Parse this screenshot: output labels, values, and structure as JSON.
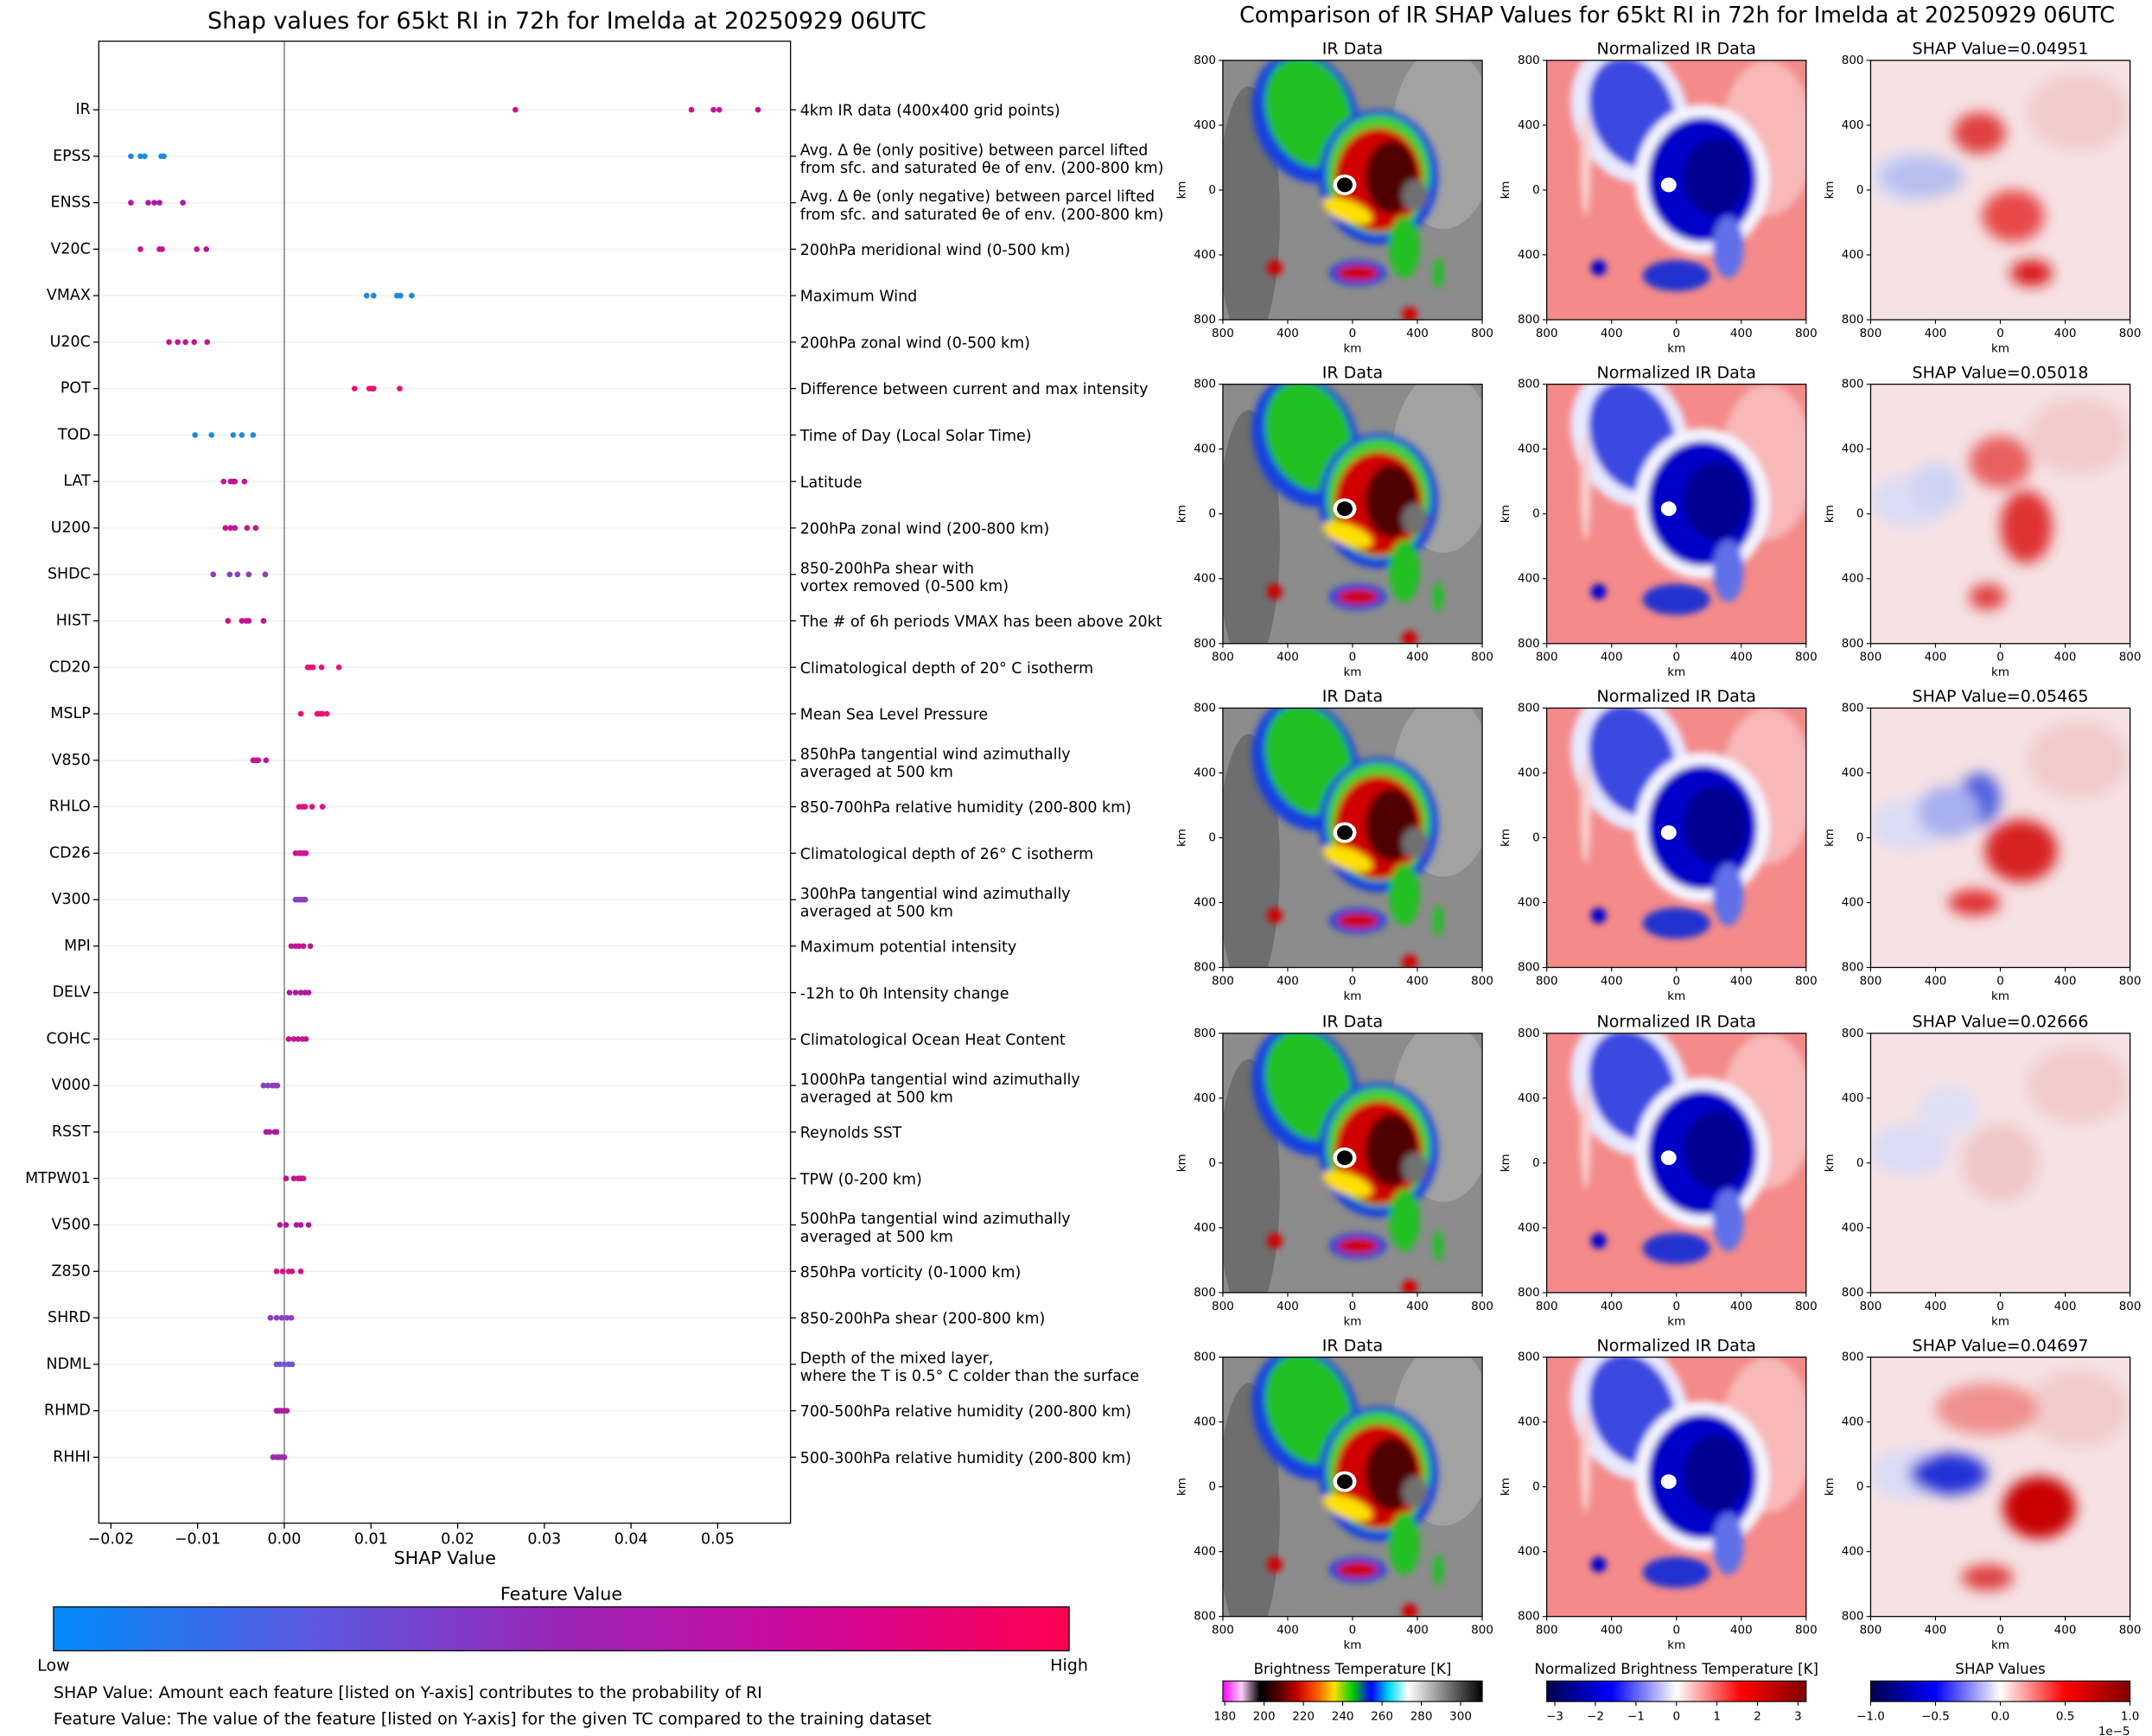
{
  "chart_data": [
    {
      "type": "strip",
      "title": "Shap values for 65kt RI in 72h for Imelda at 20250929 06UTC",
      "x_label": "SHAP Value",
      "xlim": [
        -0.0214,
        0.0584
      ],
      "xticks": [
        {
          "value": -0.02,
          "label": "−0.02"
        },
        {
          "value": -0.01,
          "label": "−0.01"
        },
        {
          "value": 0,
          "label": "0.00"
        },
        0.01,
        0.02,
        0.03,
        0.04,
        0.05
      ],
      "series": [
        {
          "name": "IR",
          "color": "#c41590",
          "values": [
            0.02666,
            0.04697,
            0.04951,
            0.05018,
            0.05465
          ],
          "description": [
            "4km IR data (400x400 grid points)"
          ]
        },
        {
          "name": "EPSS",
          "color": "#1e88e5",
          "values": [
            -0.0177,
            -0.0166,
            -0.0161,
            -0.0142,
            -0.0139
          ],
          "description": [
            "Avg. Δ θe (only positive) between parcel lifted",
            "from sfc. and saturated θe of env. (200-800 km)"
          ]
        },
        {
          "name": "ENSS",
          "color": "#b0189e",
          "values": [
            -0.0177,
            -0.0157,
            -0.015,
            -0.0144,
            -0.0117
          ],
          "description": [
            "Avg. Δ θe (only negative) between parcel lifted",
            "from sfc. and saturated θe of env. (200-800 km)"
          ]
        },
        {
          "name": "V20C",
          "color": "#c41590",
          "values": [
            -0.0166,
            -0.0144,
            -0.0141,
            -0.0101,
            -0.009
          ],
          "description": [
            "200hPa meridional wind (0-500 km)"
          ]
        },
        {
          "name": "VMAX",
          "color": "#1e88e5",
          "values": [
            0.0095,
            0.0103,
            0.013,
            0.0134,
            0.0147
          ],
          "description": [
            "Maximum Wind"
          ]
        },
        {
          "name": "U20C",
          "color": "#c41590",
          "values": [
            -0.0133,
            -0.0123,
            -0.0114,
            -0.0104,
            -0.0089
          ],
          "description": [
            "200hPa zonal wind (0-500 km)"
          ]
        },
        {
          "name": "POT",
          "color": "#ee1172",
          "values": [
            0.0081,
            0.0098,
            0.0101,
            0.0103,
            0.0133
          ],
          "description": [
            "Difference between current and max intensity"
          ]
        },
        {
          "name": "TOD",
          "color": "#1e88e5",
          "values": [
            -0.0103,
            -0.0084,
            -0.0059,
            -0.0049,
            -0.0036
          ],
          "description": [
            "Time of Day (Local Solar Time)"
          ]
        },
        {
          "name": "LAT",
          "color": "#c41590",
          "values": [
            -0.007,
            -0.0062,
            -0.0059,
            -0.0057,
            -0.0046
          ],
          "description": [
            "Latitude"
          ]
        },
        {
          "name": "U200",
          "color": "#c41590",
          "values": [
            -0.0068,
            -0.0062,
            -0.0057,
            -0.0043,
            -0.0033
          ],
          "description": [
            "200hPa zonal wind (200-800 km)"
          ]
        },
        {
          "name": "SHDC",
          "color": "#8a3fbd",
          "values": [
            -0.0082,
            -0.0063,
            -0.0054,
            -0.0041,
            -0.0022
          ],
          "description": [
            "850-200hPa shear with",
            "vortex removed (0-500 km)"
          ]
        },
        {
          "name": "HIST",
          "color": "#c41590",
          "values": [
            -0.0065,
            -0.0049,
            -0.0044,
            -0.0041,
            -0.0024
          ],
          "description": [
            "The # of 6h periods VMAX has been above 20kt"
          ]
        },
        {
          "name": "CD20",
          "color": "#e8127a",
          "values": [
            0.0027,
            0.003,
            0.0033,
            0.0043,
            0.0063
          ],
          "description": [
            "Climatological depth of 20° C isotherm"
          ]
        },
        {
          "name": "MSLP",
          "color": "#e8127a",
          "values": [
            0.0019,
            0.0038,
            0.0041,
            0.0044,
            0.0049
          ],
          "description": [
            "Mean Sea Level Pressure"
          ]
        },
        {
          "name": "V850",
          "color": "#c41590",
          "values": [
            -0.0036,
            -0.0035,
            -0.0032,
            -0.003,
            -0.0021
          ],
          "description": [
            "850hPa tangential wind azimuthally",
            "averaged at 500 km"
          ]
        },
        {
          "name": "RHLO",
          "color": "#e0137e",
          "values": [
            0.0017,
            0.0021,
            0.0024,
            0.0032,
            0.0044
          ],
          "description": [
            "850-700hPa relative humidity (200-800 km)"
          ]
        },
        {
          "name": "CD26",
          "color": "#d0148a",
          "values": [
            0.0013,
            0.0017,
            0.0019,
            0.0022,
            0.0025
          ],
          "description": [
            "Climatological depth of 26° C isotherm"
          ]
        },
        {
          "name": "V300",
          "color": "#8a3fbd",
          "values": [
            0.0013,
            0.0016,
            0.0019,
            0.0022,
            0.0024
          ],
          "description": [
            "300hPa tangential wind azimuthally",
            "averaged at 500 km"
          ]
        },
        {
          "name": "MPI",
          "color": "#c41590",
          "values": [
            0.0008,
            0.0013,
            0.0017,
            0.0022,
            0.003
          ],
          "description": [
            "Maximum potential intensity"
          ]
        },
        {
          "name": "DELV",
          "color": "#b0189e",
          "values": [
            0.0006,
            0.0013,
            0.0019,
            0.0024,
            0.0028
          ],
          "description": [
            "-12h to 0h Intensity change"
          ]
        },
        {
          "name": "COHC",
          "color": "#c41590",
          "values": [
            0.0005,
            0.0011,
            0.0016,
            0.0021,
            0.0025
          ],
          "description": [
            "Climatological Ocean Heat Content"
          ]
        },
        {
          "name": "V000",
          "color": "#8a3fbd",
          "values": [
            -0.0024,
            -0.0019,
            -0.0014,
            -0.0011,
            -0.0008
          ],
          "description": [
            "1000hPa tangential wind azimuthally",
            "averaged at 500 km"
          ]
        },
        {
          "name": "RSST",
          "color": "#b0189e",
          "values": [
            -0.0021,
            -0.0017,
            -0.0011,
            -0.0009
          ],
          "description": [
            "Reynolds SST"
          ]
        },
        {
          "name": "MTPW01",
          "color": "#c41590",
          "values": [
            0.0002,
            0.0011,
            0.0016,
            0.0019,
            0.0022
          ],
          "description": [
            "TPW (0-200 km)"
          ]
        },
        {
          "name": "V500",
          "color": "#b0189e",
          "values": [
            -0.0005,
            0.0002,
            0.0014,
            0.0019,
            0.0028
          ],
          "description": [
            "500hPa tangential wind azimuthally",
            "averaged at 500 km"
          ]
        },
        {
          "name": "Z850",
          "color": "#d0148a",
          "values": [
            -0.0009,
            -0.0002,
            0.0005,
            0.0009,
            0.0019
          ],
          "description": [
            "850hPa vorticity (0-1000 km)"
          ]
        },
        {
          "name": "SHRD",
          "color": "#8a3fbd",
          "values": [
            -0.0016,
            -0.0009,
            -0.0003,
            0.0003,
            0.0008
          ],
          "description": [
            "850-200hPa shear (200-800 km)"
          ]
        },
        {
          "name": "NDML",
          "color": "#6f55d0",
          "values": [
            -0.0009,
            -0.0005,
            0,
            0.0005,
            0.0009
          ],
          "description": [
            "Depth of the mixed layer,",
            "where the T is 0.5° C colder than the surface"
          ]
        },
        {
          "name": "RHMD",
          "color": "#b0189e",
          "values": [
            -0.0009,
            -0.0006,
            -0.0003,
            0,
            0.0003
          ],
          "description": [
            "700-500hPa relative humidity (200-800 km)"
          ]
        },
        {
          "name": "RHHI",
          "color": "#9a2aae",
          "values": [
            -0.0013,
            -0.0009,
            -0.0006,
            -0.0003,
            0
          ],
          "description": [
            "500-300hPa relative humidity (200-800 km)"
          ]
        }
      ],
      "colorbar": {
        "title": "Feature Value",
        "low_label": "Low",
        "high_label": "High",
        "colors": [
          "#008bfb",
          "#5a5ae0",
          "#9a25b8",
          "#d0089a",
          "#ff0052"
        ]
      },
      "notes": [
        "SHAP Value: Amount each feature [listed on Y-axis] contributes to the probability of RI",
        "Feature Value: The value of the feature [listed on Y-axis] for the given TC compared to the training dataset"
      ]
    },
    {
      "type": "image-grid",
      "title": "Comparison of IR SHAP Values for 65kt RI in 72h for Imelda at 20250929 06UTC",
      "column_titles": [
        "IR Data",
        "Normalized IR Data"
      ],
      "shap_titles": [
        "SHAP Value=0.04951",
        "SHAP Value=0.05018",
        "SHAP Value=0.05465",
        "SHAP Value=0.02666",
        "SHAP Value=0.04697"
      ],
      "x_label": "km",
      "y_label": "km",
      "xlim": [
        -800,
        800
      ],
      "ylim": [
        -800,
        800
      ],
      "xticks": [
        {
          "value": -800,
          "label": "800"
        },
        {
          "value": -400,
          "label": "400"
        },
        0,
        {
          "value": 400,
          "label": "400"
        },
        {
          "value": 800,
          "label": "800"
        }
      ],
      "yticks": [
        {
          "value": -800,
          "label": "800"
        },
        {
          "value": -400,
          "label": "400"
        },
        0,
        {
          "value": 400,
          "label": "400"
        },
        {
          "value": 800,
          "label": "800"
        }
      ],
      "colorbars": [
        {
          "label": "Brightness Temperature [K]",
          "lim": [
            179,
            311
          ],
          "ticks": [
            180,
            200,
            220,
            240,
            260,
            280,
            300
          ],
          "colors": [
            "#ff00ff",
            "#ffd0ff",
            "#000000",
            "#500000",
            "#c00000",
            "#ff5000",
            "#ffe000",
            "#00d000",
            "#0000ff",
            "#00e0ff",
            "#ffffff",
            "#c0c0c0",
            "#808080",
            "#404040",
            "#000000"
          ]
        },
        {
          "label": "Normalized Brightness Temperature [K]",
          "lim": [
            -3.2,
            3.2
          ],
          "ticks": [
            {
              "value": -3,
              "label": "−3"
            },
            {
              "value": -2,
              "label": "−2"
            },
            {
              "value": -1,
              "label": "−1"
            },
            0,
            1,
            2,
            3
          ],
          "colors": [
            "#00004c",
            "#0000ff",
            "#ffffff",
            "#ff0000",
            "#800000"
          ]
        },
        {
          "label": "SHAP Values",
          "lim": [
            -1,
            1
          ],
          "ticks": [
            {
              "value": -1,
              "label": "−1.0"
            },
            {
              "value": -0.5,
              "label": "−0.5"
            },
            {
              "value": 0,
              "label": "0.0"
            },
            0.5,
            {
              "value": 1,
              "label": "1.0"
            }
          ],
          "offset_label": "1e−5",
          "colors": [
            "#00004c",
            "#0000ff",
            "#ffffff",
            "#ff0000",
            "#800000"
          ]
        }
      ]
    }
  ]
}
